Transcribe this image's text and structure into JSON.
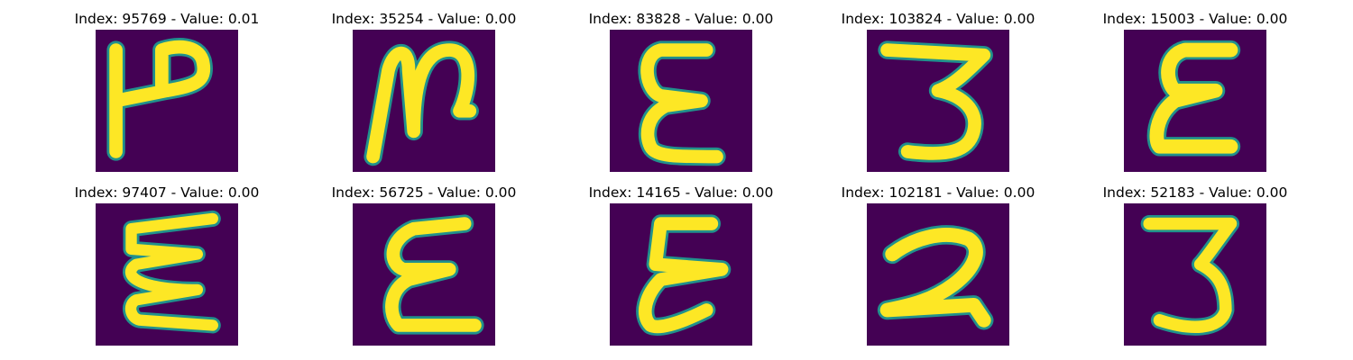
{
  "colors": {
    "background": "#440154",
    "mid": "#21918c",
    "stroke": "#fde725"
  },
  "panels": [
    {
      "title": "Index: 95769 - Value: 0.01",
      "glyph": "2",
      "icon": "handwritten-digit-2-rotated-icon"
    },
    {
      "title": "Index: 35254 - Value: 0.00",
      "glyph": "N",
      "icon": "handwritten-digit-2-rotated-icon"
    },
    {
      "title": "Index: 83828 - Value: 0.00",
      "glyph": "ε",
      "icon": "handwritten-digit-3-mirrored-icon"
    },
    {
      "title": "Index: 103824 - Value: 0.00",
      "glyph": "3",
      "icon": "handwritten-digit-3-icon"
    },
    {
      "title": "Index: 15003 - Value: 0.00",
      "glyph": "ε",
      "icon": "handwritten-digit-3-mirrored-icon"
    },
    {
      "title": "Index: 97407 - Value: 0.00",
      "glyph": "ξ",
      "icon": "handwritten-digit-3-mirrored-icon"
    },
    {
      "title": "Index: 56725 - Value: 0.00",
      "glyph": "ε",
      "icon": "handwritten-digit-3-mirrored-icon"
    },
    {
      "title": "Index: 14165 - Value: 0.00",
      "glyph": "ε",
      "icon": "handwritten-digit-3-mirrored-icon"
    },
    {
      "title": "Index: 102181 - Value: 0.00",
      "glyph": "2",
      "icon": "handwritten-digit-2-icon"
    },
    {
      "title": "Index: 52183 - Value: 0.00",
      "glyph": "3",
      "icon": "handwritten-digit-3-icon"
    }
  ]
}
